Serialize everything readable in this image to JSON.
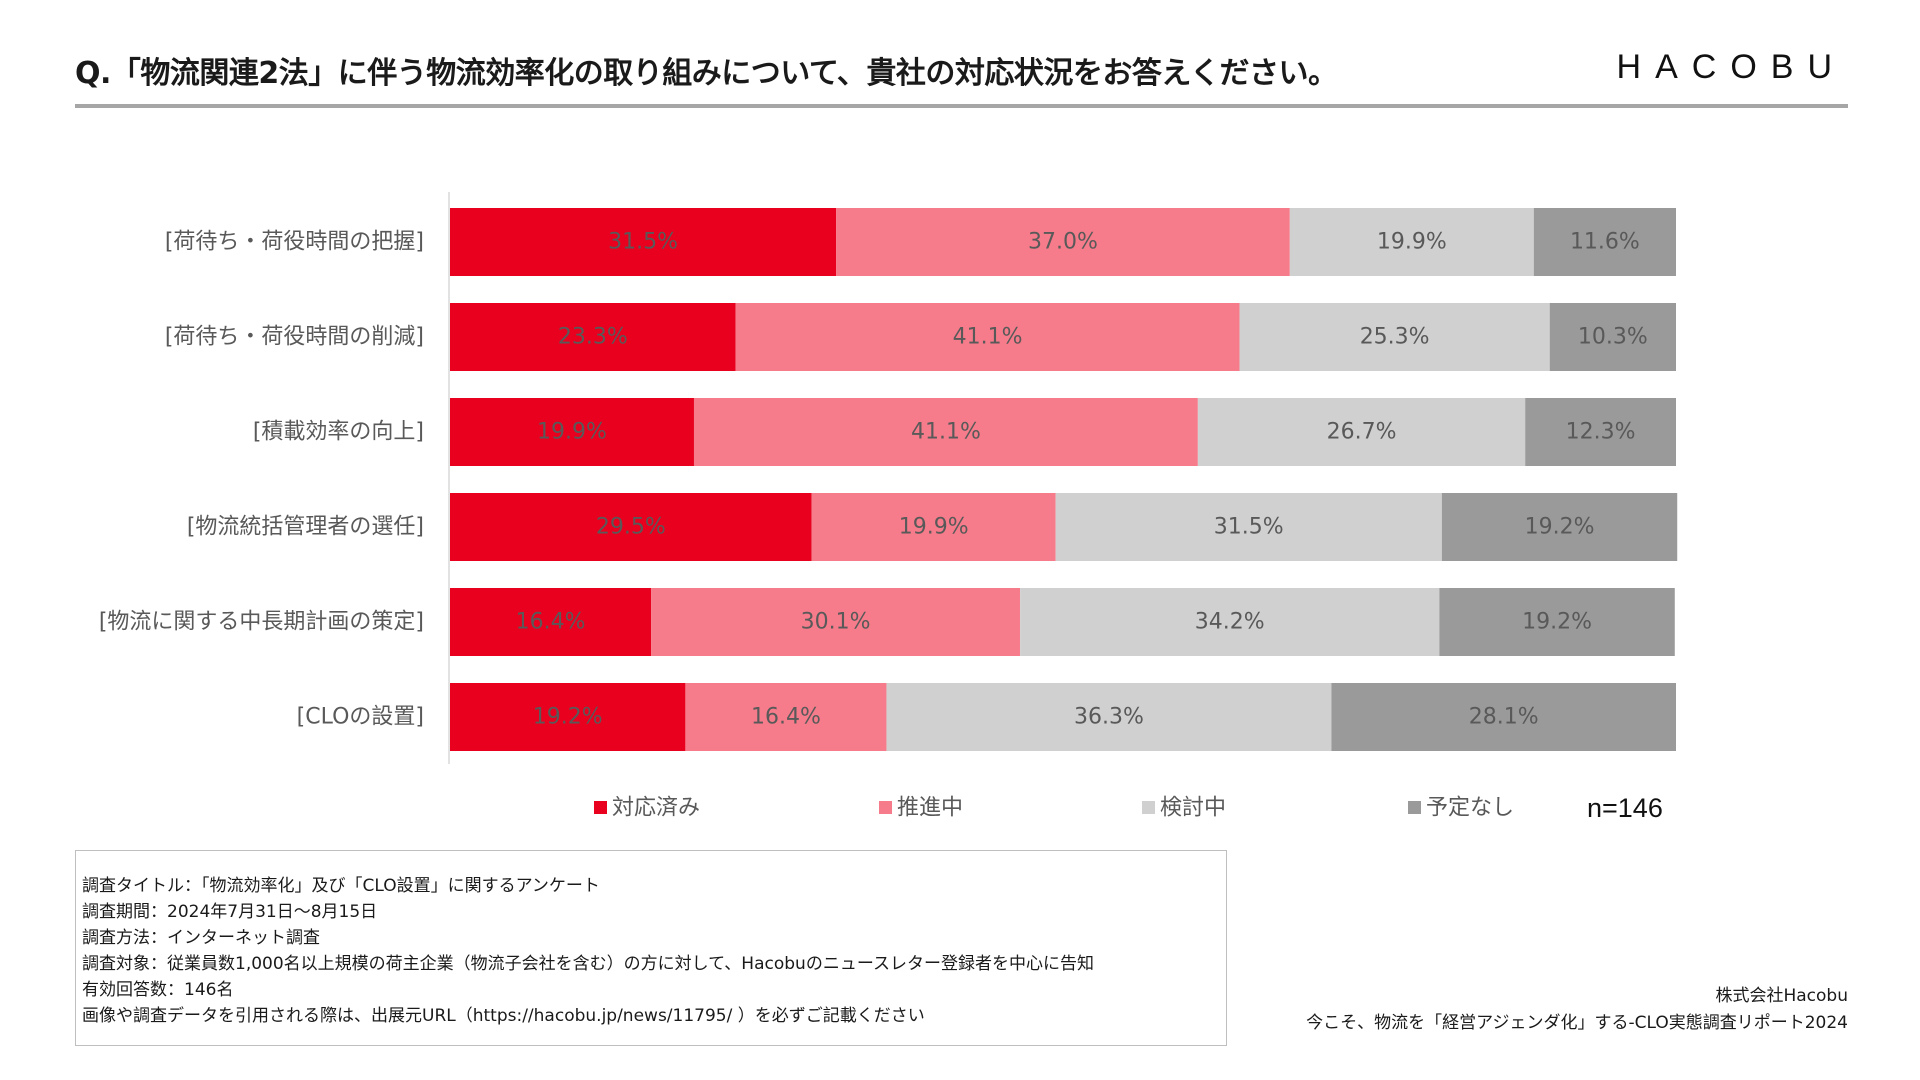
{
  "header": {
    "question": "Q.「物流関連2法」に伴う物流効率化の取り組みについて、貴社の対応状況をお答えください。",
    "logo": "HACOBU"
  },
  "chart_data": {
    "type": "bar",
    "orientation": "horizontal",
    "stacked": true,
    "percent_stacked": true,
    "title": "",
    "xlabel": "",
    "ylabel": "",
    "xlim": [
      0,
      100
    ],
    "categories": [
      "[荷待ち・荷役時間の把握]",
      "[荷待ち・荷役時間の削減]",
      "[積載効率の向上]",
      "[物流統括管理者の選任]",
      "[物流に関する中長期計画の策定]",
      "[CLOの設置]"
    ],
    "series": [
      {
        "name": "対応済み",
        "color": "#e8001e",
        "values": [
          31.5,
          23.3,
          19.9,
          29.5,
          16.4,
          19.2
        ],
        "labels": [
          "31.5%",
          "23.3%",
          "19.9%",
          "29.5%",
          "16.4%",
          "19.2%"
        ]
      },
      {
        "name": "推進中",
        "color": "#f67c8b",
        "values": [
          37.0,
          41.1,
          41.1,
          19.9,
          30.1,
          16.4
        ],
        "labels": [
          "37.0%",
          "41.1%",
          "41.1%",
          "19.9%",
          "30.1%",
          "16.4%"
        ]
      },
      {
        "name": "検討中",
        "color": "#d0d0d0",
        "values": [
          19.9,
          25.3,
          26.7,
          31.5,
          34.2,
          36.3
        ],
        "labels": [
          "19.9%",
          "25.3%",
          "26.7%",
          "31.5%",
          "34.2%",
          "36.3%"
        ]
      },
      {
        "name": "予定なし",
        "color": "#9a9a9a",
        "values": [
          11.6,
          10.3,
          12.3,
          19.2,
          19.2,
          28.1
        ],
        "labels": [
          "11.6%",
          "10.3%",
          "12.3%",
          "19.2%",
          "19.2%",
          "28.1%"
        ]
      }
    ],
    "legend_position": "bottom",
    "sample_size": "n=146"
  },
  "survey": {
    "lines": [
      "調査タイトル：「物流効率化」及び「CLO設置」に関するアンケート",
      "調査期間：2024年7月31日〜8月15日",
      "調査方法：インターネット調査",
      "調査対象：従業員数1,000名以上規模の荷主企業（物流子会社を含む）の方に対して、Hacobuのニュースレター登録者を中心に告知",
      "有効回答数：146名",
      "画像や調査データを引用される際は、出展元URL（https://hacobu.jp/news/11795/ ）を必ずご記載ください"
    ]
  },
  "footer": {
    "company": "株式会社Hacobu",
    "report": "今こそ、物流を「経営アジェンダ化」する-CLO実態調査リポート2024"
  }
}
